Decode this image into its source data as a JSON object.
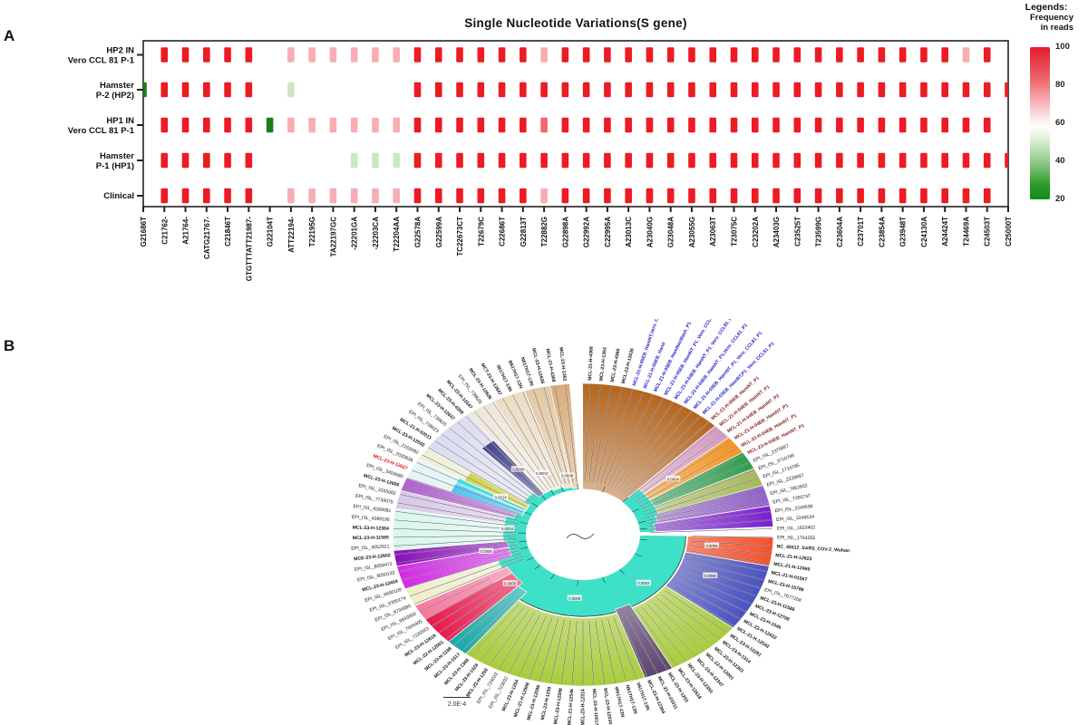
{
  "figure": {
    "panel_a": "A",
    "panel_b": "B"
  },
  "chart_data": [
    {
      "type": "heatmap",
      "title": "Single Nucleotide Variations(S gene)",
      "rows": [
        {
          "label_lines": [
            "HP2 IN",
            "Vero CCL 81 P-1"
          ]
        },
        {
          "label_lines": [
            "Hamster",
            "P-2 (HP2)"
          ]
        },
        {
          "label_lines": [
            "HP1 IN",
            "Vero CCL 81 P-1"
          ]
        },
        {
          "label_lines": [
            "Hamster",
            "P-1 (HP1)"
          ]
        },
        {
          "label_lines": [
            "Clinical"
          ]
        }
      ],
      "columns": [
        "G21686T",
        "C21762-",
        "A21764-",
        "CATG21767-",
        "C21846T",
        "GTGTTTATT21987-",
        "G22104T",
        "ATT22194-",
        "T22195G",
        "TA22197GC",
        "-22201GA",
        "-22203CA",
        "T22204AA",
        "G22578A",
        "G22599A",
        "TC22673CT",
        "T22679C",
        "C22686T",
        "G22813T",
        "T22882G",
        "G22898A",
        "G22992A",
        "C22995A",
        "A23013C",
        "A23040G",
        "G23048A",
        "A23055G",
        "A23063T",
        "T23075C",
        "C23202A",
        "A23403G",
        "C23525T",
        "T23599G",
        "C23604A",
        "C23701T",
        "C23854A",
        "G23948T",
        "C24130A",
        "A24424T",
        "T24469A",
        "C24503T",
        "C25000T"
      ],
      "values": [
        [
          null,
          100,
          100,
          100,
          100,
          100,
          null,
          70,
          70,
          70,
          70,
          70,
          70,
          100,
          100,
          100,
          100,
          100,
          100,
          65,
          100,
          100,
          100,
          100,
          100,
          100,
          100,
          100,
          100,
          100,
          100,
          100,
          100,
          100,
          100,
          100,
          100,
          100,
          100,
          65,
          100,
          null
        ],
        [
          20,
          100,
          100,
          100,
          100,
          100,
          null,
          55,
          null,
          null,
          null,
          null,
          null,
          100,
          100,
          100,
          100,
          100,
          100,
          100,
          100,
          100,
          100,
          100,
          100,
          100,
          100,
          100,
          100,
          100,
          100,
          100,
          100,
          100,
          100,
          100,
          100,
          100,
          100,
          100,
          100,
          100
        ],
        [
          null,
          100,
          100,
          100,
          100,
          100,
          20,
          70,
          70,
          70,
          70,
          70,
          70,
          100,
          100,
          100,
          100,
          100,
          100,
          80,
          100,
          100,
          100,
          100,
          100,
          100,
          100,
          100,
          100,
          100,
          100,
          100,
          100,
          100,
          100,
          100,
          100,
          100,
          100,
          100,
          100,
          null
        ],
        [
          null,
          100,
          100,
          100,
          100,
          100,
          null,
          null,
          null,
          null,
          50,
          50,
          50,
          100,
          100,
          100,
          100,
          100,
          100,
          100,
          100,
          100,
          100,
          100,
          100,
          100,
          100,
          100,
          100,
          100,
          100,
          100,
          100,
          100,
          100,
          100,
          100,
          100,
          100,
          100,
          100,
          100
        ],
        [
          null,
          100,
          100,
          100,
          100,
          100,
          null,
          70,
          70,
          70,
          70,
          70,
          70,
          100,
          100,
          100,
          100,
          100,
          100,
          65,
          100,
          100,
          100,
          100,
          100,
          100,
          100,
          100,
          100,
          100,
          100,
          100,
          100,
          100,
          100,
          100,
          100,
          100,
          100,
          100,
          100,
          null
        ]
      ],
      "legend": {
        "title": "Legends:",
        "subtitle_line1": "Frequency",
        "subtitle_line2": "in reads",
        "ticks": [
          100,
          80,
          60,
          40,
          20
        ],
        "color_high": "#E31A2E",
        "color_mid": "#FFFFFF",
        "color_low": "#128A12"
      }
    },
    {
      "type": "circular_phylogenetic_tree",
      "scale_bar_label": "2.0E-4",
      "inner_ring_color": "#3FE0C8",
      "sectors": [
        [
          -4,
          44,
          0.3,
          1,
          "#B4651E"
        ],
        [
          44,
          50,
          0.42,
          1,
          "#D49BC3"
        ],
        [
          50,
          57,
          0.42,
          1,
          "#F59422"
        ],
        [
          57,
          64,
          0.42,
          1,
          "#2F9E4F"
        ],
        [
          64,
          71,
          0.42,
          1,
          "#A7B85C"
        ],
        [
          71,
          79,
          0.4,
          1,
          "#9160C8"
        ],
        [
          79,
          87,
          0.38,
          1,
          "#7A1FD0"
        ],
        [
          91,
          102,
          0.55,
          1,
          "#F4512D"
        ],
        [
          102,
          128,
          0.55,
          1,
          "#4A52C0"
        ],
        [
          128,
          152,
          0.55,
          1,
          "#A9CC3D"
        ],
        [
          152,
          161,
          0.52,
          1,
          "#5C4470"
        ],
        [
          161,
          218,
          0.55,
          1,
          "#A9CC3D"
        ],
        [
          218,
          225,
          0.48,
          1,
          "#17A9A9"
        ],
        [
          225,
          236,
          0.45,
          1,
          "#E8194C"
        ],
        [
          236,
          242,
          0.45,
          1,
          "#F4789E"
        ],
        [
          242,
          249,
          0.48,
          1,
          "#EFEDCB"
        ],
        [
          249,
          258,
          0.4,
          1,
          "#D428E8"
        ],
        [
          258,
          264,
          0.4,
          1,
          "#8810B8"
        ],
        [
          264,
          280,
          0.42,
          1,
          "#D8F6EE"
        ],
        [
          280,
          287,
          0.42,
          1,
          "#D8C8E8"
        ],
        [
          287,
          292,
          0.38,
          1,
          "#B060D0"
        ],
        [
          292,
          300,
          0.42,
          1,
          "#E2F4F4"
        ],
        [
          292,
          297,
          0.34,
          0.75,
          "#28B8F0"
        ],
        [
          297,
          300,
          0.34,
          0.75,
          "#20E8F0"
        ],
        [
          300,
          305,
          0.38,
          1,
          "#EFEFD8"
        ],
        [
          300,
          305,
          0.34,
          0.72,
          "#C8C820"
        ],
        [
          305,
          323,
          0.38,
          1,
          "#DCDCF2"
        ],
        [
          317,
          323,
          0.34,
          0.78,
          "#232378"
        ],
        [
          323,
          332,
          0.34,
          1,
          "#EFE6DA"
        ],
        [
          332,
          342,
          0.33,
          1,
          "#ECDCC4"
        ],
        [
          342,
          350,
          0.32,
          1,
          "#E2C8A4"
        ],
        [
          350,
          356,
          0.31,
          1,
          "#D8AC7A"
        ]
      ],
      "tip_labels": [
        [
          "MCL-21-H-4368",
          "k"
        ],
        [
          "MCL-23-H-1363",
          "k"
        ],
        [
          "MCL-23-H-4366",
          "k"
        ],
        [
          "MCL-23-H-12636",
          "k"
        ],
        [
          "MCL-21-H-05EB_HamNT,Vero_CCL81_P1",
          "b"
        ],
        [
          "MCL-21-H-05EB_Hand",
          "b"
        ],
        [
          "MCL-21-H-05EB_HamNasWash_P1",
          "b"
        ],
        [
          "MCL-21-H-05EB_HamNT_P1_Vero_CCL81_P1",
          "b"
        ],
        [
          "MCL-21-H-04EB_HamNT_P1_Vero_CCL81_P1",
          "b"
        ],
        [
          "MCL-21-H-04EB_HamNT_P1,Vero_CCL81_P1",
          "b"
        ],
        [
          "MCL-21-H-03EB_HamNT_P1_Vero_CCL81_P1",
          "b"
        ],
        [
          "MCL-21-H-03EB_HamNT,P1_Vero_CCL81_P1",
          "b"
        ],
        [
          "MCL-21-H-05EB_HamNT_P1",
          "r"
        ],
        [
          "MCL-21-H-04EB_HamNT_P1",
          "r"
        ],
        [
          "MCL-21-H-04EB_HamNT_P2",
          "r"
        ],
        [
          "MCL-21-H-04EB_HamNT_P1",
          "r"
        ],
        [
          "MCL-22-H-04EB_HamNT_P1",
          "r"
        ],
        [
          "MCL-23-H-04EB_HamNT_P1",
          "r"
        ],
        [
          "EPI_ISL_2375667",
          "k"
        ],
        [
          "EPI_ISL_3716785",
          "k"
        ],
        [
          "EPI_ISL_1716785",
          "k"
        ],
        [
          "EPI_ISL_2228697",
          "k"
        ],
        [
          "EPI_ISL_7652832",
          "k"
        ],
        [
          "EPI_ISL_7265747",
          "k"
        ],
        [
          "EPI_ISL_2249538",
          "k"
        ],
        [
          "EPI_ISL_2249534",
          "k"
        ],
        [
          "EPI_ISL_1633402",
          "k"
        ],
        [
          "EPI_ISL_1764255",
          "k"
        ],
        [
          "NC_45512_SARS_COV-2_Wuhan",
          "k"
        ],
        [
          "MCL-21-H-12623",
          "k"
        ],
        [
          "MCL-21-H-12469",
          "k"
        ],
        [
          "MCL-21-H-01567",
          "k"
        ],
        [
          "MCL-23-H-15788",
          "k"
        ],
        [
          "EPI_ISL_7677268",
          "k"
        ],
        [
          "MCL-23-H-11586",
          "k"
        ],
        [
          "MCL-23-H-12708",
          "k"
        ],
        [
          "MCL-23-H-1546",
          "k"
        ],
        [
          "MCL-23-H-12632",
          "k"
        ],
        [
          "MCL-21-H-12542",
          "k"
        ],
        [
          "MCL-23-H-12291",
          "k"
        ],
        [
          "MCL-23-H-1314",
          "k"
        ],
        [
          "MCL-23-H-12303",
          "k"
        ],
        [
          "MCL-22-H-12001",
          "k"
        ],
        [
          "MCL-23-H-12347",
          "k"
        ],
        [
          "MCL-23-H-12350",
          "k"
        ],
        [
          "MCL-23-H-12618",
          "k"
        ],
        [
          "MCL-23-H-1253",
          "k"
        ],
        [
          "MCL-21-H-01011",
          "k"
        ],
        [
          "MCL-23-H-12304",
          "k"
        ],
        [
          "0617H17-13N",
          "k"
        ],
        [
          "N617H17-13N",
          "k"
        ],
        [
          "W617H17-13N",
          "k"
        ],
        [
          "MCL-23-H-12034",
          "k"
        ],
        [
          "MCL-23-H-10017",
          "k"
        ],
        [
          "MCL-23-H-12314",
          "k"
        ],
        [
          "MCL-21-H-12546",
          "k"
        ],
        [
          "MCL-23-H-12598",
          "k"
        ],
        [
          "MCL-23-H-1259",
          "k"
        ],
        [
          "MCL-23-H-12596",
          "k"
        ],
        [
          "MCL-21-H-12508",
          "k"
        ],
        [
          "MCL-23-H-1254",
          "k"
        ],
        [
          "EPI_ISL_723032",
          "k"
        ],
        [
          "EPI_ISL_724033",
          "k"
        ],
        [
          "MCL-23-H-1258",
          "k"
        ],
        [
          "MCL-23-H-1328",
          "k"
        ],
        [
          "MCL-23-H-1369",
          "k"
        ],
        [
          "MCL-23-H-1517",
          "k"
        ],
        [
          "MCL-23-H-1108",
          "k"
        ],
        [
          "MCL-22-H-12001",
          "k"
        ],
        [
          "MCL-23-H-12619",
          "k"
        ],
        [
          "EPI_ISL_7226553",
          "k"
        ],
        [
          "EPI_ISL_7004405",
          "k"
        ],
        [
          "EPI_ISL_6843650",
          "k"
        ],
        [
          "EPI_ISL_9734990",
          "k"
        ],
        [
          "EPI_ISL_6300174",
          "k"
        ],
        [
          "EPI_ISL_6690109",
          "k"
        ],
        [
          "MCL-23-H-12404",
          "k"
        ],
        [
          "EPI_ISL_8050133",
          "k"
        ],
        [
          "EPI_ISL_8058472",
          "k"
        ],
        [
          "MCE-23-H-12602",
          "k"
        ],
        [
          "EPI_ISL_4052921",
          "k"
        ],
        [
          "MCL-23-H-11565",
          "k"
        ],
        [
          "MCL-23-H-12364",
          "k"
        ],
        [
          "EPI_ISL_4289196",
          "k"
        ],
        [
          "EPI_ISL_4289081",
          "k"
        ],
        [
          "EPI_ISL_7739075",
          "k"
        ],
        [
          "EPI_ISL_3355082",
          "k"
        ],
        [
          "MCL-23-H-12606",
          "k"
        ],
        [
          "EPI_ISL_3403680",
          "k"
        ],
        [
          "MCL-23-H-12627",
          "R"
        ],
        [
          "EPI_ISL_2030639",
          "k"
        ],
        [
          "EPI_ISL_2162082",
          "k"
        ],
        [
          "MCL-23-H-12502",
          "k"
        ],
        [
          "MCL-21-H-02011",
          "k"
        ],
        [
          "EPI_ISL_738623",
          "k"
        ],
        [
          "EPI_ISL_739625",
          "k"
        ],
        [
          "MCL-23-H-12647",
          "k"
        ],
        [
          "MCL-23-H-4299",
          "k"
        ],
        [
          "MCL-23-H-12647",
          "k"
        ],
        [
          "EPI_ISL_738626",
          "k"
        ],
        [
          "MCL-23-H-12636",
          "k"
        ],
        [
          "MCT-23-H-12647",
          "k"
        ],
        [
          "0617H17-13N",
          "k"
        ],
        [
          "B617H17-13N",
          "k"
        ],
        [
          "N617H17-13N",
          "k"
        ],
        [
          "MCL-23-H-12636",
          "k"
        ],
        [
          "MCL-21-H-4368",
          "k"
        ],
        [
          "MCL-23-H-1362",
          "k"
        ]
      ],
      "branch_length_labels": [
        {
          "a": -28,
          "r": 0.46,
          "t": "0.0004"
        },
        {
          "a": -12,
          "r": 0.4,
          "t": "0.0008"
        },
        {
          "a": 52,
          "r": 0.6,
          "t": "0.0004"
        },
        {
          "a": 96,
          "r": 0.68,
          "t": "0.0005"
        },
        {
          "a": 112,
          "r": 0.72,
          "t": "0.0006"
        },
        {
          "a": 135,
          "r": 0.45,
          "t": "0.0002"
        },
        {
          "a": 186,
          "r": 0.42,
          "t": "0.0008"
        },
        {
          "a": 230,
          "r": 0.5,
          "t": "0.0005"
        },
        {
          "a": 258,
          "r": 0.52,
          "t": "0.0006"
        },
        {
          "a": 276,
          "r": 0.4,
          "t": "0.0034"
        },
        {
          "a": 300,
          "r": 0.5,
          "t": "0.0014"
        },
        {
          "a": 322,
          "r": 0.55,
          "t": "0.0008"
        }
      ]
    }
  ]
}
